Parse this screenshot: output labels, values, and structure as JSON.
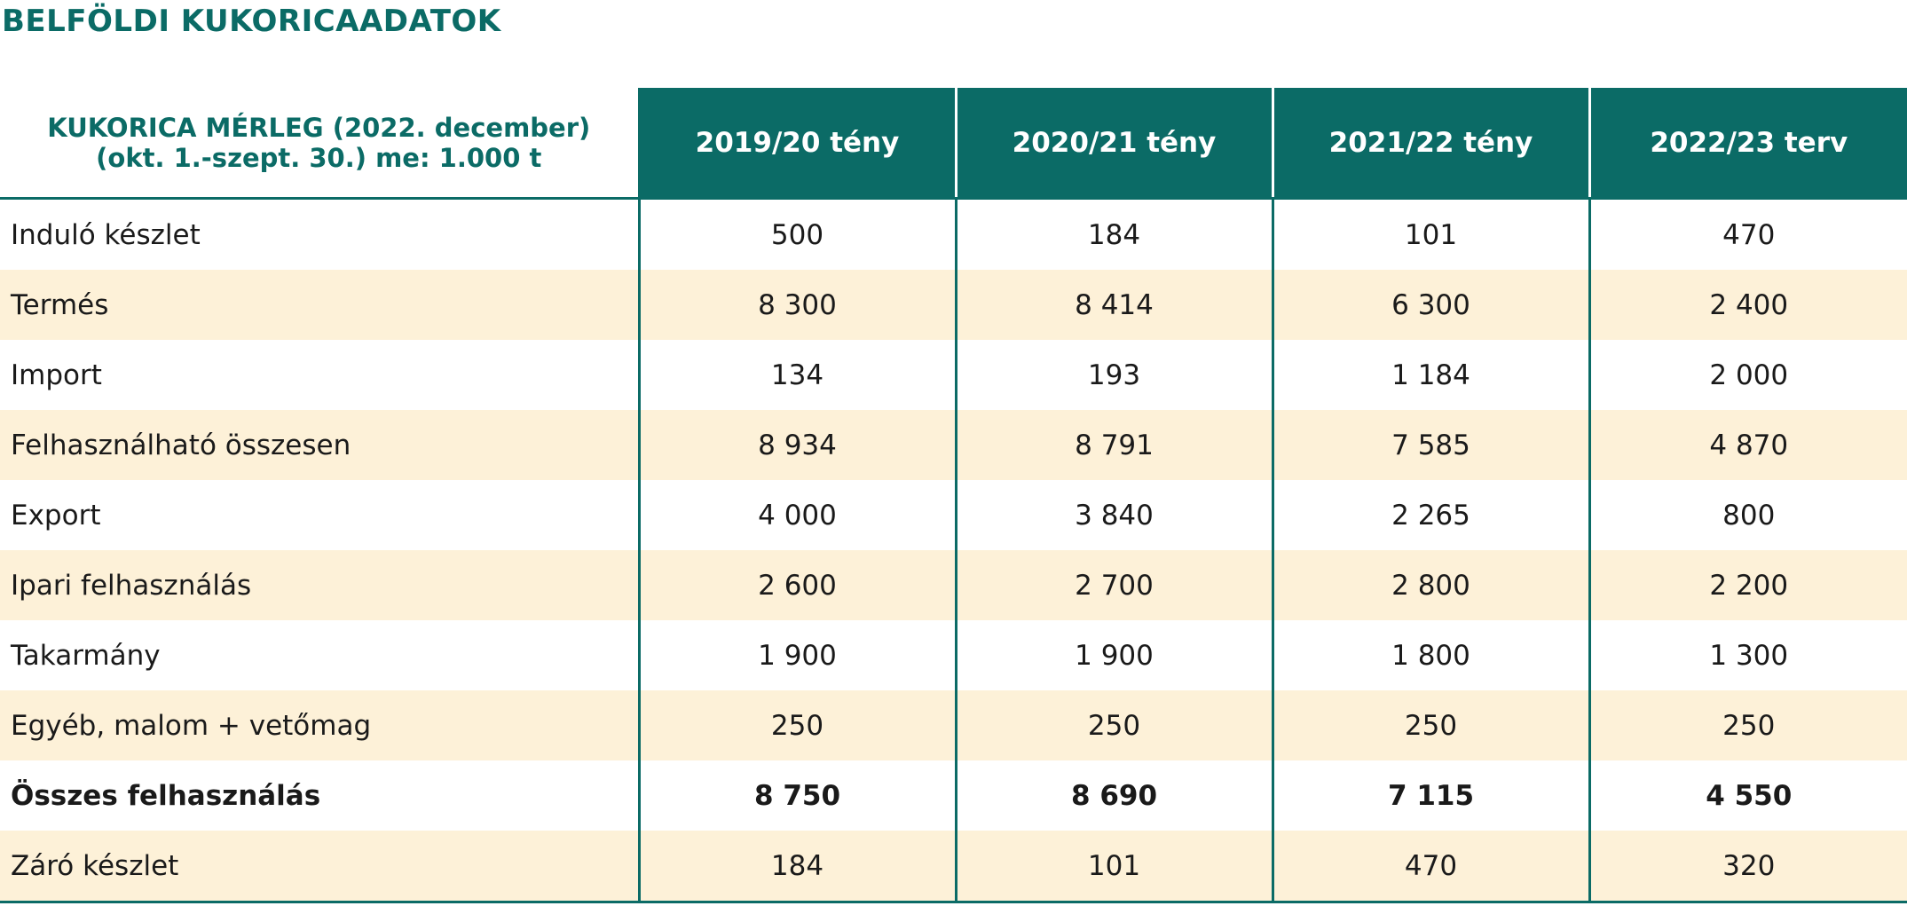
{
  "title": "BELFÖLDI KUKORICAADATOK",
  "colors": {
    "accent": "#0b6b66",
    "stripe": "#fdf1d8",
    "text": "#1a1a1a"
  },
  "table": {
    "corner_line1": "KUKORICA MÉRLEG (2022. december)",
    "corner_line2": "(okt. 1.-szept. 30.) me: 1.000 t",
    "headers": [
      "2019/20 tény",
      "2020/21 tény",
      "2021/22 tény",
      "2022/23 terv"
    ],
    "rows": [
      {
        "label": "Induló készlet",
        "values": [
          "500",
          "184",
          "101",
          "470"
        ],
        "bold": false
      },
      {
        "label": "Termés",
        "values": [
          "8 300",
          "8 414",
          "6 300",
          "2 400"
        ],
        "bold": false
      },
      {
        "label": "Import",
        "values": [
          "134",
          "193",
          "1 184",
          "2 000"
        ],
        "bold": false
      },
      {
        "label": "Felhasználható összesen",
        "values": [
          "8 934",
          "8 791",
          "7 585",
          "4 870"
        ],
        "bold": false
      },
      {
        "label": "Export",
        "values": [
          "4 000",
          "3 840",
          "2 265",
          "800"
        ],
        "bold": false
      },
      {
        "label": "Ipari felhasználás",
        "values": [
          "2 600",
          "2 700",
          "2 800",
          "2 200"
        ],
        "bold": false
      },
      {
        "label": "Takarmány",
        "values": [
          "1 900",
          "1 900",
          "1 800",
          "1 300"
        ],
        "bold": false
      },
      {
        "label": "Egyéb, malom + vetőmag",
        "values": [
          "250",
          "250",
          "250",
          "250"
        ],
        "bold": false
      },
      {
        "label": "Összes felhasználás",
        "values": [
          "8 750",
          "8 690",
          "7 115",
          "4 550"
        ],
        "bold": true
      },
      {
        "label": "Záró készlet",
        "values": [
          "184",
          "101",
          "470",
          "320"
        ],
        "bold": false
      }
    ]
  }
}
